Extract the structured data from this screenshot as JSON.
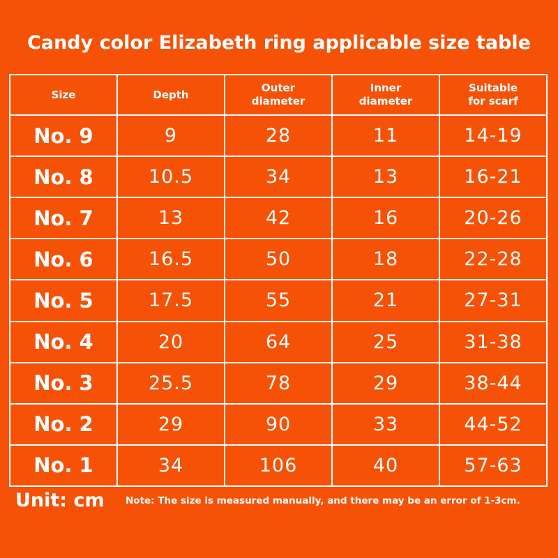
{
  "header": {
    "title": "Candy color Elizabeth ring applicable size table"
  },
  "table": {
    "columns": [
      "Size",
      "Depth",
      "Outer diameter",
      "Inner diameter",
      "Suitable for scarf"
    ],
    "rows": [
      [
        "No. 9",
        9,
        28,
        11,
        "14-19"
      ],
      [
        "No. 8",
        10.5,
        34,
        13,
        "16-21"
      ],
      [
        "No. 7",
        13,
        42,
        16,
        "20-26"
      ],
      [
        "No. 6",
        16.5,
        50,
        18,
        "22-28"
      ],
      [
        "No. 5",
        17.5,
        55,
        21,
        "27-31"
      ],
      [
        "No. 4",
        20,
        64,
        25,
        "31-38"
      ],
      [
        "No. 3",
        25.5,
        78,
        29,
        "38-44"
      ],
      [
        "No. 2",
        29,
        90,
        33,
        "44-52"
      ],
      [
        "No. 1",
        34,
        106,
        40,
        "57-63"
      ]
    ]
  },
  "footer": {
    "unit": "Unit: cm",
    "note": "Note: The size is measured manually, and there may be an error of 1-3cm."
  }
}
